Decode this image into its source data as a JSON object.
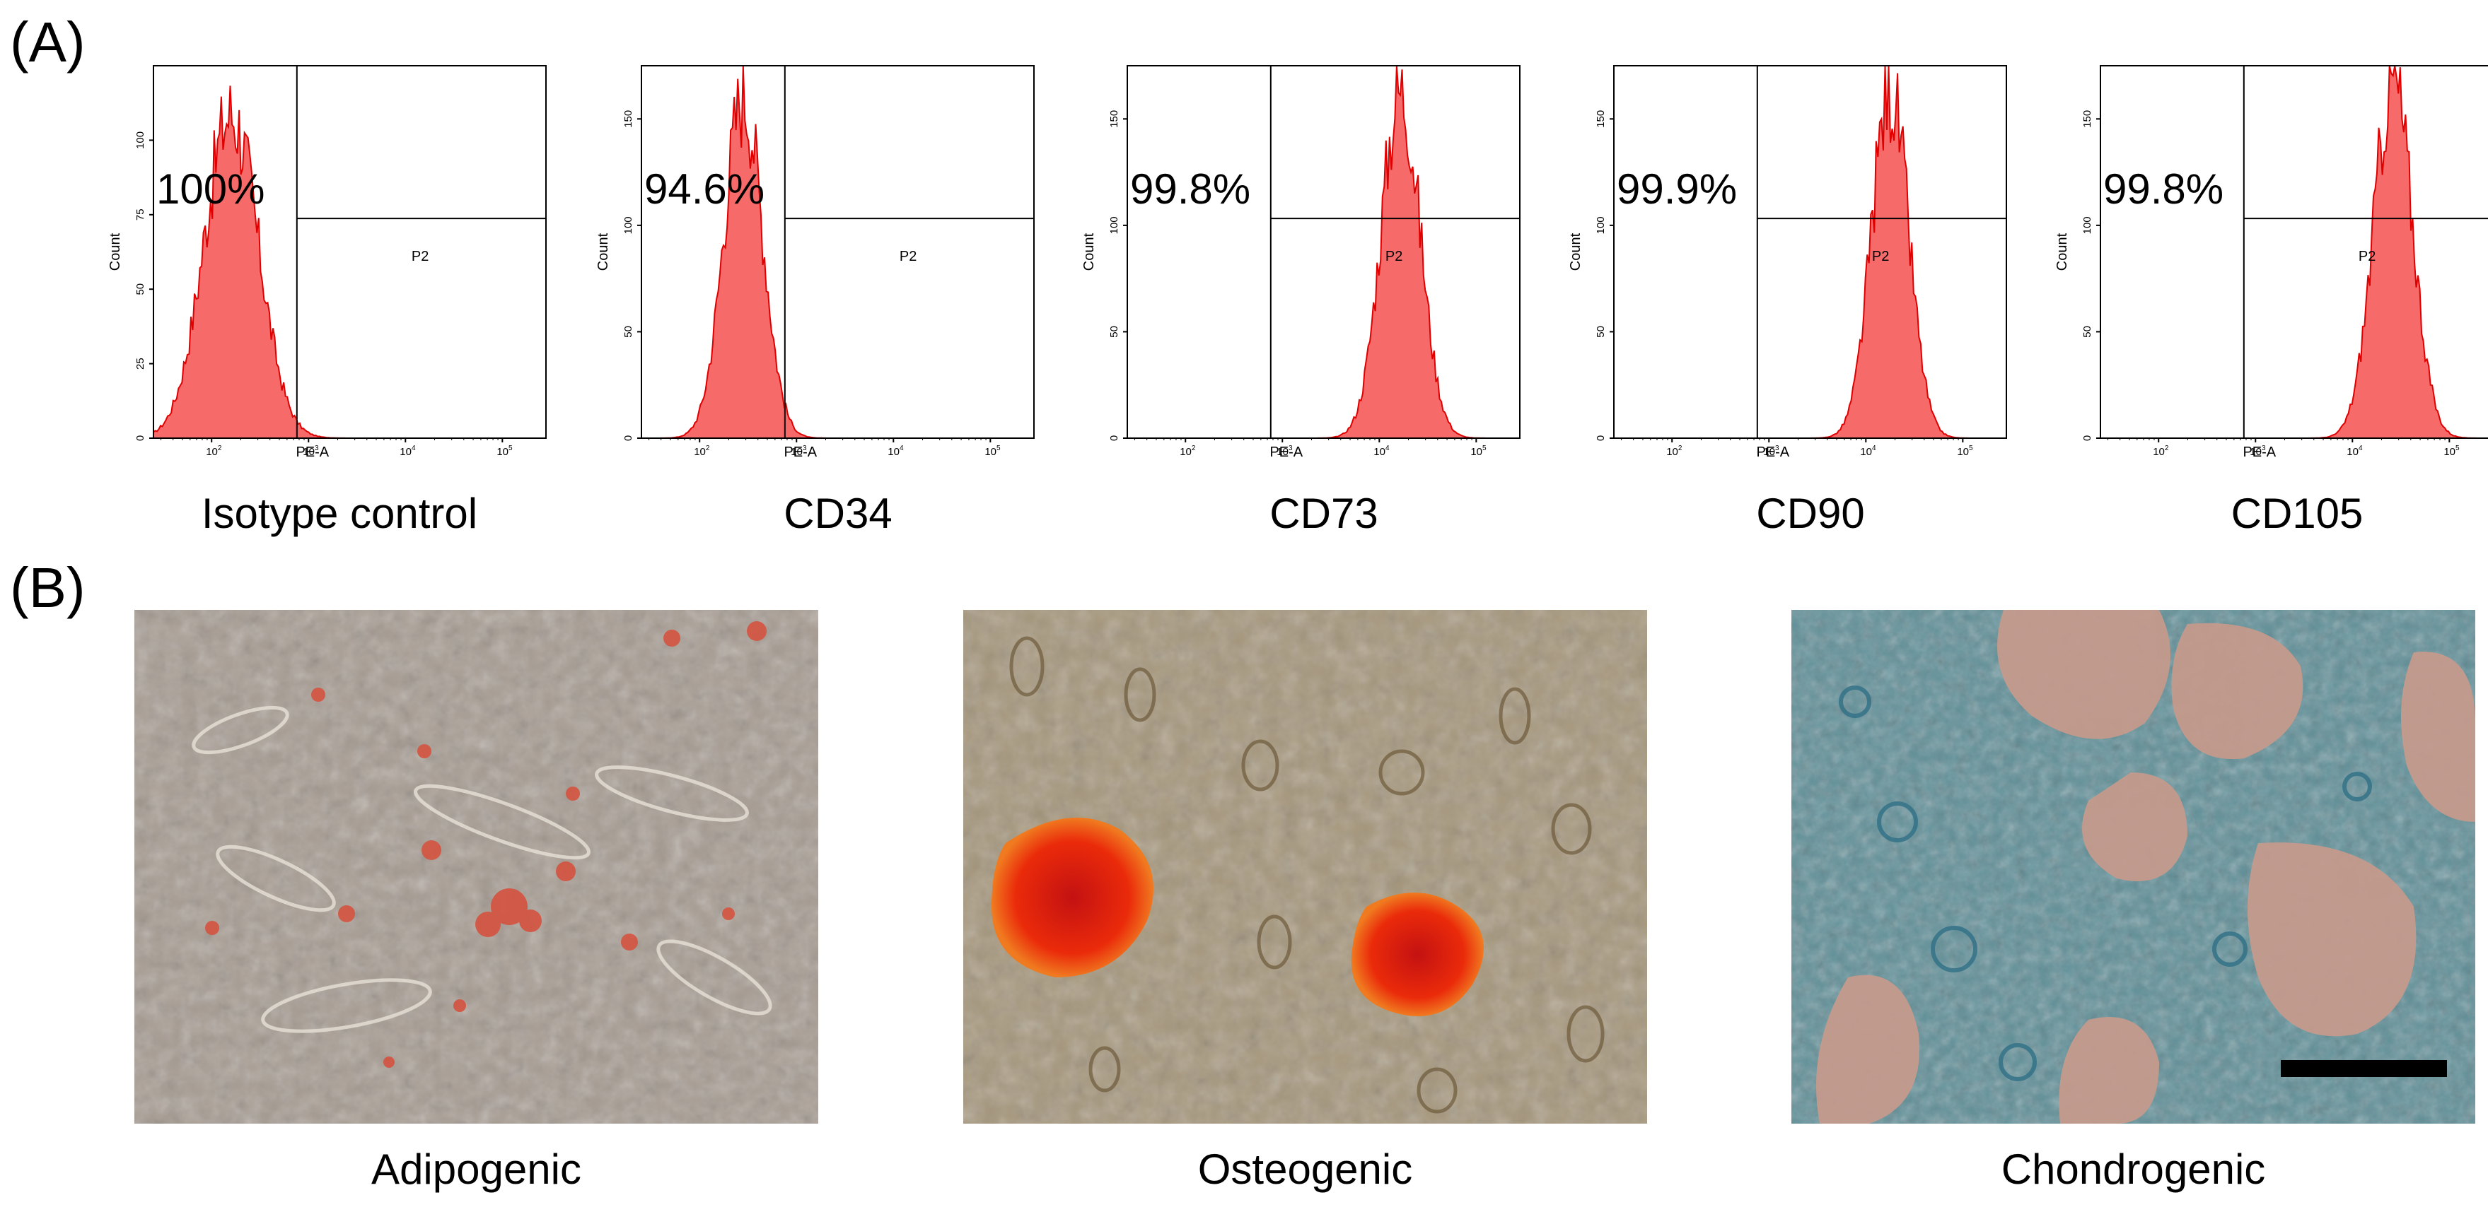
{
  "panel_a": {
    "label": "(A)",
    "y_axis_label": "Count",
    "x_axis_label": "PE-A",
    "gate_label": "P2",
    "x_ticks": [
      "10",
      "10",
      "10",
      "10"
    ],
    "x_tick_exponents": [
      "2",
      "3",
      "4",
      "5"
    ],
    "histograms": [
      {
        "caption": "Isotype control",
        "percent": "100%",
        "y_ticks": [
          "0",
          "25",
          "50",
          "75",
          "100"
        ],
        "ymax": 125,
        "mode_log": 2.2,
        "spread": 0.28,
        "peak": 112
      },
      {
        "caption": "CD34",
        "percent": "94.6%",
        "y_ticks": [
          "0",
          "50",
          "100",
          "150"
        ],
        "ymax": 175,
        "mode_log": 2.45,
        "spread": 0.2,
        "peak": 165
      },
      {
        "caption": "CD73",
        "percent": "99.8%",
        "y_ticks": [
          "0",
          "50",
          "100",
          "150"
        ],
        "ymax": 175,
        "mode_log": 4.22,
        "spread": 0.2,
        "peak": 168
      },
      {
        "caption": "CD90",
        "percent": "99.9%",
        "y_ticks": [
          "0",
          "50",
          "100",
          "150"
        ],
        "ymax": 175,
        "mode_log": 4.25,
        "spread": 0.19,
        "peak": 168
      },
      {
        "caption": "CD105",
        "percent": "99.8%",
        "y_ticks": [
          "0",
          "50",
          "100",
          "150"
        ],
        "ymax": 175,
        "mode_log": 4.42,
        "spread": 0.2,
        "peak": 172
      }
    ]
  },
  "panel_b": {
    "label": "(B)",
    "images": [
      {
        "caption": "Adipogenic"
      },
      {
        "caption": "Osteogenic"
      },
      {
        "caption": "Chondrogenic"
      }
    ]
  },
  "colors": {
    "fill": "#f66a6a",
    "stroke": "#e00000",
    "axis": "#000000"
  }
}
